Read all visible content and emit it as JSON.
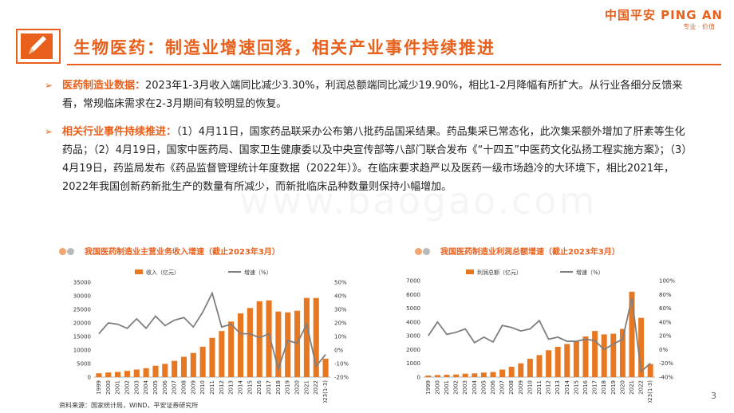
{
  "brand": {
    "name": "中国平安 PING AN",
    "tagline": "专业 · 价值"
  },
  "title": "生物医药：制造业增速回落，相关产业事件持续推进",
  "bullets": [
    {
      "lead": "医药制造业数据：",
      "text": "2023年1-3月收入端同比减少3.30%，利润总额端同比减少19.90%，相比1-2月降幅有所扩大。从行业各细分反馈来看，常规临床需求在2-3月期间有较明显的恢复。"
    },
    {
      "lead": "相关行业事件持续推进：",
      "text": "（1）4月11日，国家药品联采办公布第八批药品国采结果。药品集采已常态化，此次集采额外增加了肝素等生化药品；（2）4月19日，国家中医药局、国家卫生健康委以及中央宣传部等八部门联合发布《“十四五”中医药文化弘扬工程实施方案》；（3）4月19日，药监局发布《药品监督管理统计年度数据（2022年）》。在临床要求趋严以及医药一级市场趋冷的大环境下，相比2021年，2022年我国创新药新批生产的数量有所减少，而新批临床品种数量则保持小幅增加。"
    }
  ],
  "watermark": "www.baogao.com",
  "source": "资料来源：国家统计局，WIND，平安证券研究所",
  "page_number": "3",
  "colors": {
    "accent": "#e8601c",
    "bar": "#e87722",
    "line": "#7f7f7f"
  },
  "chart_data": [
    {
      "type": "bar",
      "title": "我国医药制造业主营业务收入增速（截止2023年3月）",
      "categories": [
        "1999",
        "2000",
        "2001",
        "2002",
        "2003",
        "2004",
        "2005",
        "2006",
        "2007",
        "2008",
        "2009",
        "2010",
        "2011",
        "2012",
        "2013",
        "2014",
        "2015",
        "2016",
        "2017",
        "2018",
        "2019",
        "2020",
        "2021",
        "2022",
        "2023(1-3)"
      ],
      "series": [
        {
          "name": "收入（亿元）",
          "axis": "left",
          "kind": "bar",
          "values": [
            1400,
            1700,
            1900,
            2300,
            2800,
            3300,
            4200,
            4900,
            6000,
            7500,
            8900,
            11200,
            14500,
            17000,
            20500,
            23500,
            25500,
            28000,
            28300,
            24200,
            23900,
            24500,
            29200,
            29200,
            6800
          ]
        },
        {
          "name": "增速（%）",
          "axis": "right",
          "kind": "line",
          "values": [
            12,
            20,
            19,
            16,
            23,
            16,
            25,
            18,
            22,
            24,
            17,
            28,
            42,
            17,
            19,
            12,
            12,
            9,
            12,
            -14,
            7,
            5,
            19,
            -12,
            -3.3
          ]
        }
      ],
      "yleft": {
        "min": 0,
        "max": 35000,
        "ticks": [
          0,
          5000,
          10000,
          15000,
          20000,
          25000,
          30000,
          35000
        ]
      },
      "yright": {
        "min": -20,
        "max": 50,
        "ticks": [
          "-20%",
          "-10%",
          "0%",
          "10%",
          "20%",
          "30%",
          "40%",
          "50%"
        ]
      },
      "legend": "top"
    },
    {
      "type": "bar",
      "title": "我国医药制造业利润总额增速（截止2023年3月）",
      "categories": [
        "1999",
        "2000",
        "2001",
        "2002",
        "2003",
        "2004",
        "2005",
        "2006",
        "2007",
        "2008",
        "2009",
        "2010",
        "2011",
        "2012",
        "2013",
        "2014",
        "2015",
        "2016",
        "2017",
        "2018",
        "2019",
        "2020",
        "2021",
        "2022",
        "2023(1-3)"
      ],
      "series": [
        {
          "name": "利润总额（亿元）",
          "axis": "left",
          "kind": "bar",
          "values": [
            110,
            150,
            170,
            190,
            250,
            270,
            330,
            370,
            550,
            750,
            1000,
            1330,
            1600,
            1950,
            2200,
            2400,
            2600,
            2950,
            3350,
            3100,
            3150,
            3500,
            6200,
            4300,
            950
          ]
        },
        {
          "name": "增速（%）",
          "axis": "right",
          "kind": "line",
          "values": [
            20,
            40,
            22,
            25,
            30,
            10,
            18,
            11,
            35,
            32,
            27,
            30,
            42,
            15,
            18,
            12,
            12,
            15,
            13,
            0,
            8,
            15,
            75,
            -32,
            -19.9
          ]
        }
      ],
      "yleft": {
        "min": 0,
        "max": 7000,
        "ticks": [
          0,
          1000,
          2000,
          3000,
          4000,
          5000,
          6000,
          7000
        ]
      },
      "yright": {
        "min": -40,
        "max": 100,
        "ticks": [
          "-40%",
          "-20%",
          "0%",
          "20%",
          "40%",
          "60%",
          "80%",
          "100%"
        ]
      },
      "legend": "top"
    }
  ]
}
